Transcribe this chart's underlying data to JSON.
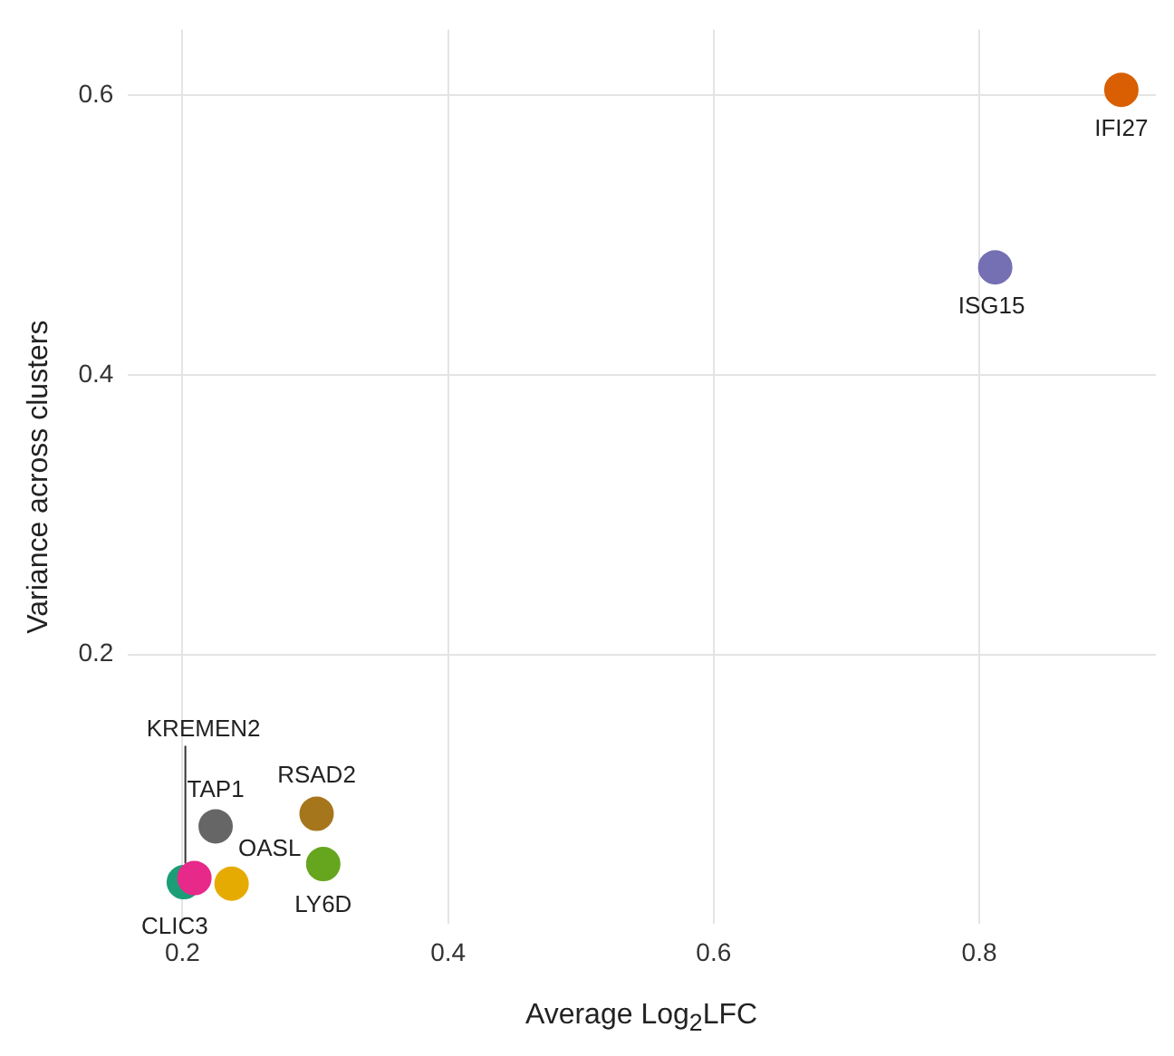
{
  "chart_data": {
    "type": "scatter",
    "xlabel": "Average Log$_{2}$LFC",
    "ylabel": "Variance across clusters",
    "xlim": [
      0.159,
      0.933
    ],
    "xticks": [
      0.2,
      0.4,
      0.6,
      0.8
    ],
    "ylim": [
      0.007,
      0.647
    ],
    "yticks": [
      0.2,
      0.4,
      0.6
    ],
    "grid": true,
    "legend": false,
    "marker": "circle",
    "series": [
      {
        "name": "IFI27",
        "color": "#d95f02",
        "x": [
          0.907
        ],
        "values": [
          0.604
        ]
      },
      {
        "name": "ISG15",
        "color": "#7570b3",
        "x": [
          0.812
        ],
        "values": [
          0.477
        ]
      },
      {
        "name": "RSAD2",
        "color": "#a6761d",
        "x": [
          0.301
        ],
        "values": [
          0.086
        ]
      },
      {
        "name": "TAP1",
        "color": "#666666",
        "x": [
          0.225
        ],
        "values": [
          0.077
        ]
      },
      {
        "name": "KREMEN2",
        "color": "#e7298a",
        "x": [
          0.209
        ],
        "values": [
          0.04
        ]
      },
      {
        "name": "OASL",
        "color": "#e6ab02",
        "x": [
          0.237
        ],
        "values": [
          0.036
        ]
      },
      {
        "name": "LY6D",
        "color": "#66a61e",
        "x": [
          0.306
        ],
        "values": [
          0.05
        ]
      },
      {
        "name": "CLIC3",
        "color": "#1b9e77",
        "x": [
          0.201
        ],
        "values": [
          0.037
        ]
      }
    ]
  }
}
